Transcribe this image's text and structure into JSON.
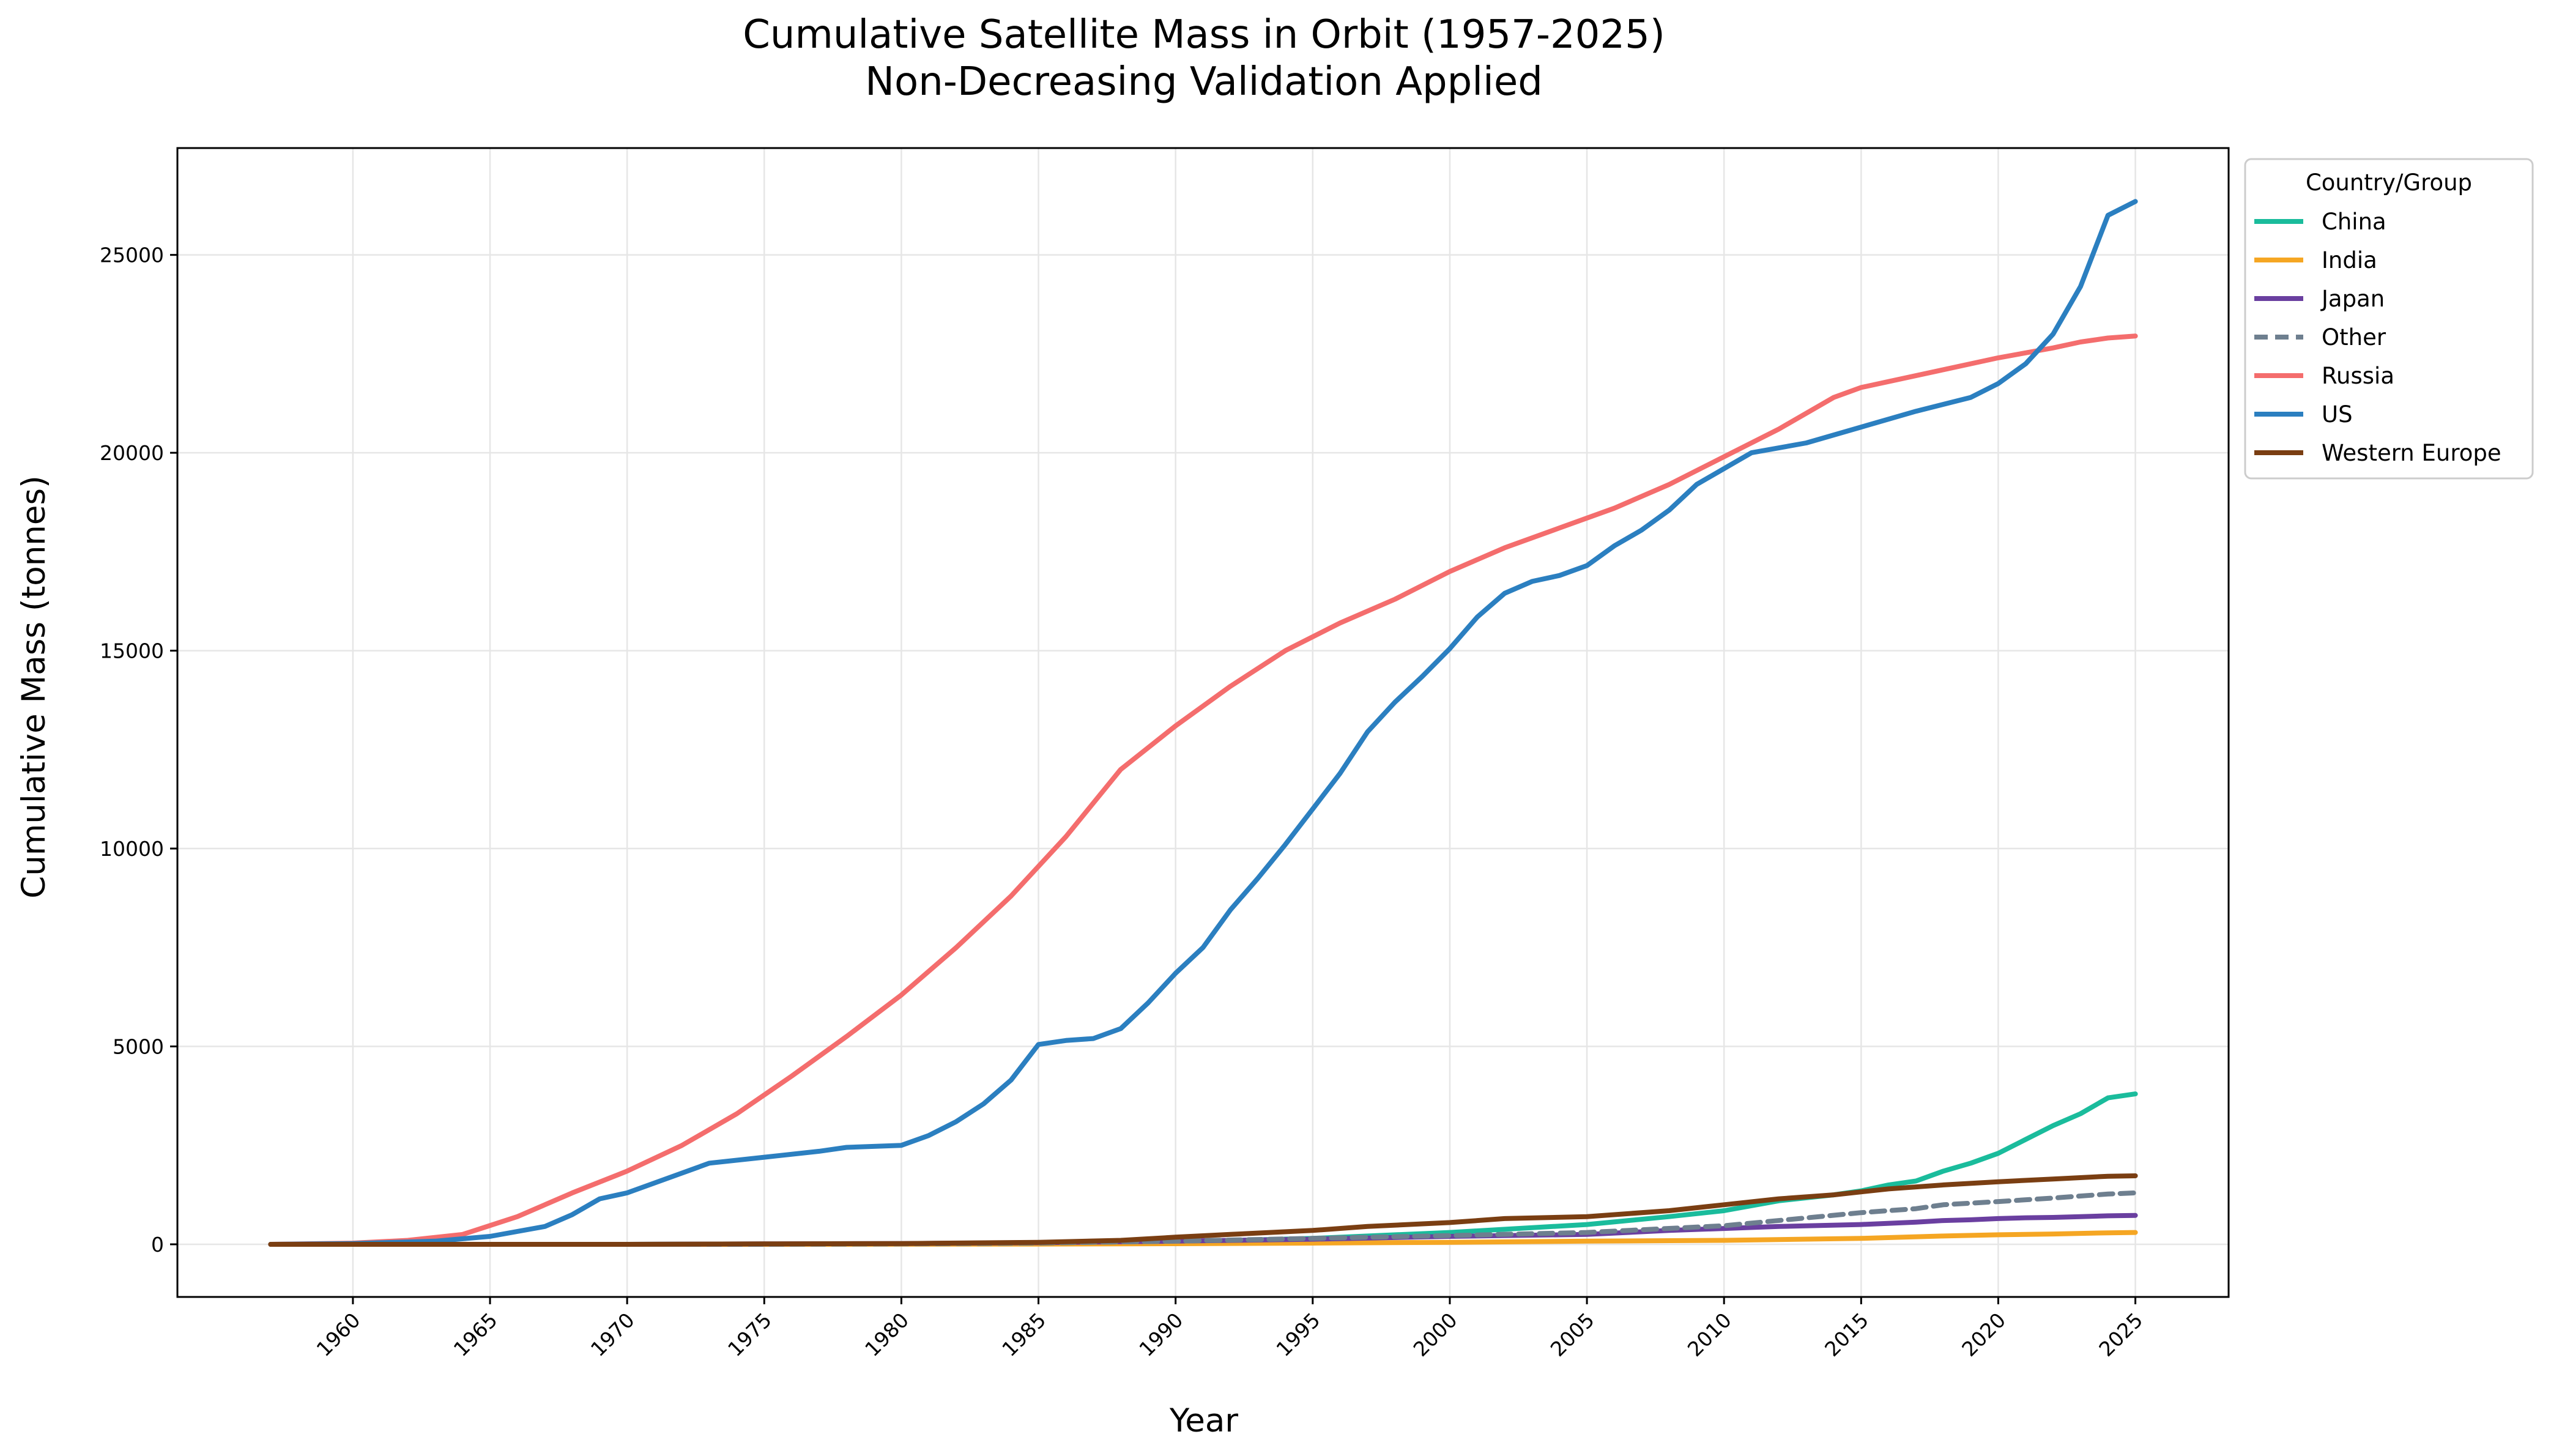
{
  "chart_data": {
    "type": "line",
    "title": "Cumulative Satellite Mass in Orbit (1957-2025)",
    "subtitle": "Non-Decreasing Validation Applied",
    "xlabel": "Year",
    "ylabel": "Cumulative Mass (tonnes)",
    "xlim": [
      1953.6,
      2028.4
    ],
    "ylim": [
      -1330,
      27700
    ],
    "x_ticks": [
      1960,
      1965,
      1970,
      1975,
      1980,
      1985,
      1990,
      1995,
      2000,
      2005,
      2010,
      2015,
      2020,
      2025
    ],
    "y_ticks": [
      0,
      5000,
      10000,
      15000,
      20000,
      25000
    ],
    "grid": true,
    "legend": {
      "title": "Country/Group",
      "placement": "outside-top-right"
    },
    "series": [
      {
        "name": "China",
        "color": "#1abc9c",
        "dash": false,
        "points": [
          [
            1957,
            0
          ],
          [
            1970,
            0
          ],
          [
            1975,
            5
          ],
          [
            1980,
            10
          ],
          [
            1985,
            20
          ],
          [
            1990,
            60
          ],
          [
            1995,
            150
          ],
          [
            2000,
            300
          ],
          [
            2005,
            500
          ],
          [
            2008,
            700
          ],
          [
            2010,
            850
          ],
          [
            2012,
            1100
          ],
          [
            2014,
            1250
          ],
          [
            2015,
            1350
          ],
          [
            2016,
            1500
          ],
          [
            2017,
            1600
          ],
          [
            2018,
            1850
          ],
          [
            2019,
            2050
          ],
          [
            2020,
            2300
          ],
          [
            2021,
            2650
          ],
          [
            2022,
            3000
          ],
          [
            2023,
            3300
          ],
          [
            2024,
            3700
          ],
          [
            2025,
            3800
          ]
        ]
      },
      {
        "name": "India",
        "color": "#f5a623",
        "dash": false,
        "points": [
          [
            1957,
            0
          ],
          [
            1975,
            0
          ],
          [
            1980,
            2
          ],
          [
            1985,
            5
          ],
          [
            1990,
            15
          ],
          [
            1995,
            30
          ],
          [
            2000,
            50
          ],
          [
            2005,
            80
          ],
          [
            2010,
            100
          ],
          [
            2015,
            150
          ],
          [
            2018,
            210
          ],
          [
            2020,
            240
          ],
          [
            2022,
            260
          ],
          [
            2024,
            290
          ],
          [
            2025,
            300
          ]
        ]
      },
      {
        "name": "Japan",
        "color": "#6a3fa0",
        "dash": false,
        "points": [
          [
            1957,
            0
          ],
          [
            1970,
            0
          ],
          [
            1975,
            10
          ],
          [
            1980,
            20
          ],
          [
            1985,
            40
          ],
          [
            1990,
            80
          ],
          [
            1995,
            130
          ],
          [
            2000,
            200
          ],
          [
            2005,
            250
          ],
          [
            2008,
            350
          ],
          [
            2010,
            400
          ],
          [
            2012,
            450
          ],
          [
            2015,
            500
          ],
          [
            2017,
            560
          ],
          [
            2018,
            600
          ],
          [
            2019,
            620
          ],
          [
            2020,
            650
          ],
          [
            2021,
            670
          ],
          [
            2022,
            680
          ],
          [
            2023,
            700
          ],
          [
            2024,
            720
          ],
          [
            2025,
            730
          ]
        ]
      },
      {
        "name": "Other",
        "color": "#6e7f8f",
        "dash": true,
        "points": [
          [
            1957,
            0
          ],
          [
            1975,
            0
          ],
          [
            1980,
            10
          ],
          [
            1985,
            30
          ],
          [
            1990,
            80
          ],
          [
            1995,
            150
          ],
          [
            2000,
            220
          ],
          [
            2005,
            300
          ],
          [
            2010,
            470
          ],
          [
            2015,
            800
          ],
          [
            2017,
            900
          ],
          [
            2018,
            1000
          ],
          [
            2020,
            1080
          ],
          [
            2022,
            1170
          ],
          [
            2024,
            1270
          ],
          [
            2025,
            1300
          ]
        ]
      },
      {
        "name": "Russia",
        "color": "#f46d6d",
        "dash": false,
        "points": [
          [
            1957,
            0
          ],
          [
            1960,
            30
          ],
          [
            1962,
            100
          ],
          [
            1964,
            250
          ],
          [
            1966,
            700
          ],
          [
            1968,
            1300
          ],
          [
            1970,
            1850
          ],
          [
            1972,
            2500
          ],
          [
            1974,
            3300
          ],
          [
            1976,
            4250
          ],
          [
            1978,
            5250
          ],
          [
            1980,
            6300
          ],
          [
            1982,
            7500
          ],
          [
            1984,
            8800
          ],
          [
            1986,
            10300
          ],
          [
            1988,
            12000
          ],
          [
            1990,
            13100
          ],
          [
            1992,
            14100
          ],
          [
            1994,
            15000
          ],
          [
            1996,
            15700
          ],
          [
            1998,
            16300
          ],
          [
            2000,
            17000
          ],
          [
            2002,
            17600
          ],
          [
            2004,
            18100
          ],
          [
            2006,
            18600
          ],
          [
            2008,
            19200
          ],
          [
            2010,
            19900
          ],
          [
            2012,
            20600
          ],
          [
            2014,
            21400
          ],
          [
            2015,
            21650
          ],
          [
            2016,
            21800
          ],
          [
            2018,
            22100
          ],
          [
            2020,
            22400
          ],
          [
            2022,
            22650
          ],
          [
            2023,
            22800
          ],
          [
            2024,
            22900
          ],
          [
            2025,
            22950
          ]
        ]
      },
      {
        "name": "US",
        "color": "#2b7fc0",
        "dash": false,
        "points": [
          [
            1957,
            0
          ],
          [
            1960,
            20
          ],
          [
            1963,
            80
          ],
          [
            1965,
            200
          ],
          [
            1967,
            450
          ],
          [
            1968,
            750
          ],
          [
            1969,
            1150
          ],
          [
            1970,
            1300
          ],
          [
            1972,
            1800
          ],
          [
            1973,
            2050
          ],
          [
            1975,
            2200
          ],
          [
            1977,
            2350
          ],
          [
            1978,
            2450
          ],
          [
            1980,
            2500
          ],
          [
            1981,
            2750
          ],
          [
            1982,
            3100
          ],
          [
            1983,
            3550
          ],
          [
            1984,
            4150
          ],
          [
            1985,
            5050
          ],
          [
            1986,
            5150
          ],
          [
            1987,
            5200
          ],
          [
            1988,
            5450
          ],
          [
            1989,
            6100
          ],
          [
            1990,
            6850
          ],
          [
            1991,
            7500
          ],
          [
            1992,
            8450
          ],
          [
            1993,
            9250
          ],
          [
            1994,
            10100
          ],
          [
            1995,
            11000
          ],
          [
            1996,
            11900
          ],
          [
            1997,
            12950
          ],
          [
            1998,
            13700
          ],
          [
            1999,
            14350
          ],
          [
            2000,
            15050
          ],
          [
            2001,
            15850
          ],
          [
            2002,
            16450
          ],
          [
            2003,
            16750
          ],
          [
            2004,
            16900
          ],
          [
            2005,
            17150
          ],
          [
            2006,
            17650
          ],
          [
            2007,
            18050
          ],
          [
            2008,
            18550
          ],
          [
            2009,
            19200
          ],
          [
            2010,
            19600
          ],
          [
            2011,
            20000
          ],
          [
            2013,
            20250
          ],
          [
            2015,
            20650
          ],
          [
            2017,
            21050
          ],
          [
            2019,
            21400
          ],
          [
            2020,
            21750
          ],
          [
            2021,
            22250
          ],
          [
            2022,
            23000
          ],
          [
            2023,
            24200
          ],
          [
            2024,
            26000
          ],
          [
            2025,
            26350
          ]
        ]
      },
      {
        "name": "Western Europe",
        "color": "#7a3e12",
        "dash": false,
        "points": [
          [
            1957,
            0
          ],
          [
            1970,
            0
          ],
          [
            1975,
            10
          ],
          [
            1980,
            20
          ],
          [
            1985,
            50
          ],
          [
            1988,
            100
          ],
          [
            1990,
            180
          ],
          [
            1992,
            250
          ],
          [
            1995,
            350
          ],
          [
            1997,
            450
          ],
          [
            2000,
            550
          ],
          [
            2002,
            650
          ],
          [
            2005,
            700
          ],
          [
            2008,
            850
          ],
          [
            2010,
            1000
          ],
          [
            2012,
            1150
          ],
          [
            2014,
            1250
          ],
          [
            2016,
            1400
          ],
          [
            2018,
            1500
          ],
          [
            2020,
            1580
          ],
          [
            2022,
            1650
          ],
          [
            2024,
            1720
          ],
          [
            2025,
            1730
          ]
        ]
      }
    ]
  }
}
